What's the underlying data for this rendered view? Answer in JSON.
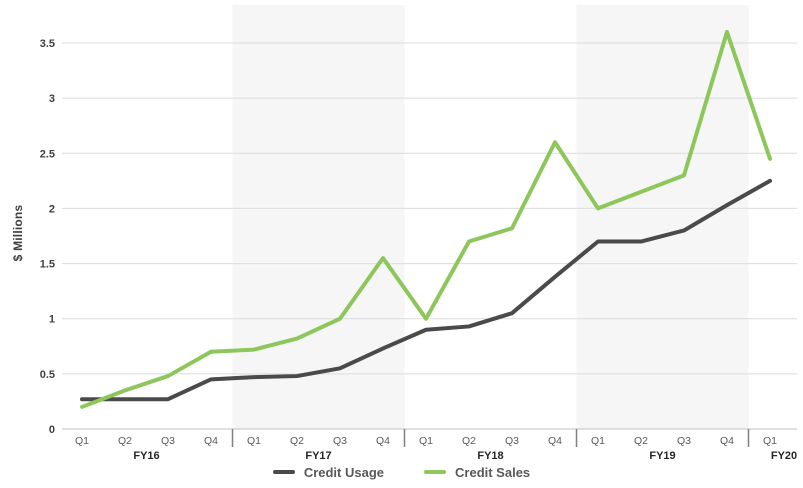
{
  "chart_data": {
    "type": "line",
    "title": "",
    "ylabel": "$ Millions",
    "ylim": [
      0,
      3.9
    ],
    "grid": true,
    "legend_position": "bottom",
    "yticks": [
      0,
      0.5,
      1,
      1.5,
      2,
      2.5,
      3,
      3.5
    ],
    "ytick_labels": [
      "0",
      "0.5",
      "1",
      "1.5",
      "2",
      "2.5",
      "3",
      "3.5"
    ],
    "x_groups": [
      {
        "fy": "FY16",
        "quarters": [
          "Q1",
          "Q2",
          "Q3",
          "Q4"
        ],
        "shaded": false
      },
      {
        "fy": "FY17",
        "quarters": [
          "Q1",
          "Q2",
          "Q3",
          "Q4"
        ],
        "shaded": true
      },
      {
        "fy": "FY18",
        "quarters": [
          "Q1",
          "Q2",
          "Q3",
          "Q4"
        ],
        "shaded": false
      },
      {
        "fy": "FY19",
        "quarters": [
          "Q1",
          "Q2",
          "Q3",
          "Q4"
        ],
        "shaded": true
      },
      {
        "fy": "FY20",
        "quarters": [
          "Q1"
        ],
        "shaded": false
      }
    ],
    "series": [
      {
        "name": "Credit Usage",
        "color": "#4a4a4a",
        "values": [
          0.27,
          0.27,
          0.27,
          0.45,
          0.47,
          0.48,
          0.55,
          0.73,
          0.9,
          0.93,
          1.05,
          1.38,
          1.7,
          1.7,
          1.8,
          2.03,
          2.25
        ]
      },
      {
        "name": "Credit Sales",
        "color": "#8dc75b",
        "values": [
          0.2,
          0.35,
          0.48,
          0.7,
          0.72,
          0.82,
          1.0,
          1.55,
          1.0,
          1.7,
          1.82,
          2.6,
          2.0,
          2.15,
          2.3,
          3.6,
          2.45
        ]
      }
    ],
    "band_color": "#f6f6f6",
    "gridline_color": "#dcdcdc",
    "axis_line_color": "#c0c0c0",
    "year_tick_color": "#7f7f7f"
  }
}
